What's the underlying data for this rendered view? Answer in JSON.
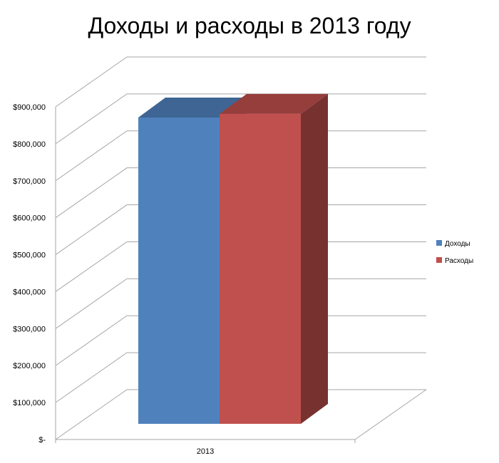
{
  "chart_data": {
    "type": "bar",
    "title": "Доходы и расходы в 2013 году",
    "categories": [
      "2013"
    ],
    "series": [
      {
        "name": "Доходы",
        "values": [
          830000
        ],
        "color": "#4F81BD"
      },
      {
        "name": "Расходы",
        "values": [
          840000
        ],
        "color": "#C0504D"
      }
    ],
    "y_ticks": [
      "$-",
      "$100,000",
      "$200,000",
      "$300,000",
      "$400,000",
      "$500,000",
      "$600,000",
      "$700,000",
      "$800,000",
      "$900,000"
    ],
    "ylim": [
      0,
      900000
    ],
    "grid": true,
    "legend": "right",
    "style": "3d-clustered-column"
  }
}
